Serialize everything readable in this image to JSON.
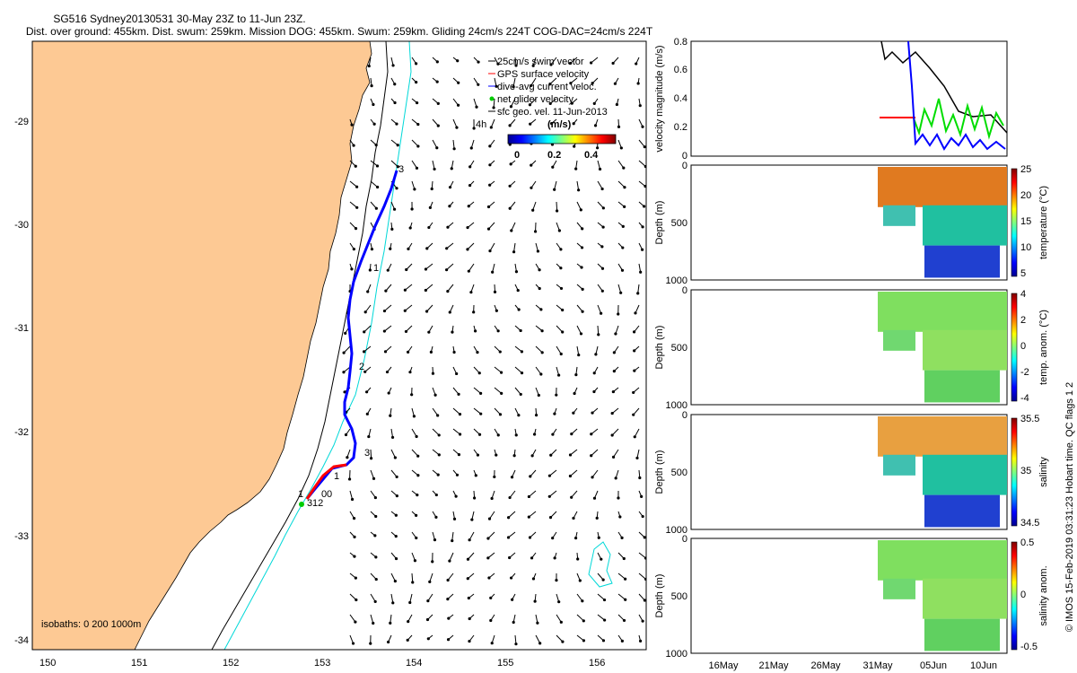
{
  "header": {
    "title_line1": "SG516 Sydney20130531 30-May 23Z to 11-Jun 23Z.",
    "title_line2": "Dist. over ground: 455km. Dist. swum: 259km. Mission DOG: 455km. Swum: 259km. Gliding 24cm/s 224T COG-DAC=24cm/s 224T"
  },
  "map": {
    "x_ticks": [
      "150",
      "151",
      "152",
      "153",
      "154",
      "155",
      "156"
    ],
    "y_ticks": [
      "-29",
      "-30",
      "-31",
      "-32",
      "-33",
      "-34"
    ],
    "legend": [
      {
        "label": "25cm/s swim vector",
        "color": "#000000",
        "marker": "line"
      },
      {
        "label": "GPS surface velocity",
        "color": "#ff0000",
        "marker": "line"
      },
      {
        "label": "dive-avg current veloc.",
        "color": "#0000ff",
        "marker": "line"
      },
      {
        "label": "net glider velocity",
        "color": "#00cc00",
        "marker": "dot"
      },
      {
        "label": "sfc geo. vel. 11-Jun-2013",
        "color": "#000000",
        "marker": "line"
      }
    ],
    "vector_label": "4h",
    "colorbar": {
      "title": "(m/s)",
      "ticks": [
        "0",
        "0.2",
        "0.4"
      ]
    },
    "isobaths_label": "isobaths: 0   200  1000m",
    "track_labels": [
      "3",
      "1",
      "2",
      "3",
      "1",
      "1",
      "3",
      "0",
      "12",
      "0"
    ],
    "land_color": "#fdc994",
    "isobath_200_color": "#000000",
    "isobath_1000_color": "#00d8d8"
  },
  "velocity_panel": {
    "ylabel": "velocity magnitude (m/s)",
    "y_ticks": [
      "0",
      "0.2",
      "0.4",
      "0.6",
      "0.8"
    ]
  },
  "profiles": [
    {
      "id": "temperature",
      "ylabel": "Depth (m)",
      "cblabel": "temperature (°C)",
      "y_ticks": [
        "0",
        "500",
        "1000"
      ],
      "cb_ticks": [
        "25",
        "20",
        "15",
        "10",
        "5"
      ]
    },
    {
      "id": "temp-anom",
      "ylabel": "Depth (m)",
      "cblabel": "temp. anom. (°C)",
      "y_ticks": [
        "0",
        "500",
        "1000"
      ],
      "cb_ticks": [
        "4",
        "2",
        "0",
        "-2",
        "-4"
      ]
    },
    {
      "id": "salinity",
      "ylabel": "Depth (m)",
      "cblabel": "salinity",
      "y_ticks": [
        "0",
        "500",
        "1000"
      ],
      "cb_ticks": [
        "35.5",
        "35",
        "34.5"
      ]
    },
    {
      "id": "salinity-anom",
      "ylabel": "Depth (m)",
      "cblabel": "salinity anom.",
      "y_ticks": [
        "0",
        "500",
        "1000"
      ],
      "cb_ticks": [
        "0.5",
        "0",
        "-0.5"
      ]
    }
  ],
  "time_axis": [
    "16May",
    "21May",
    "26May",
    "31May",
    "05Jun",
    "10Jun"
  ],
  "footer_note": "© IMOS 15-Feb-2019 03:31:23 Hobart time. QC flags 1  2"
}
